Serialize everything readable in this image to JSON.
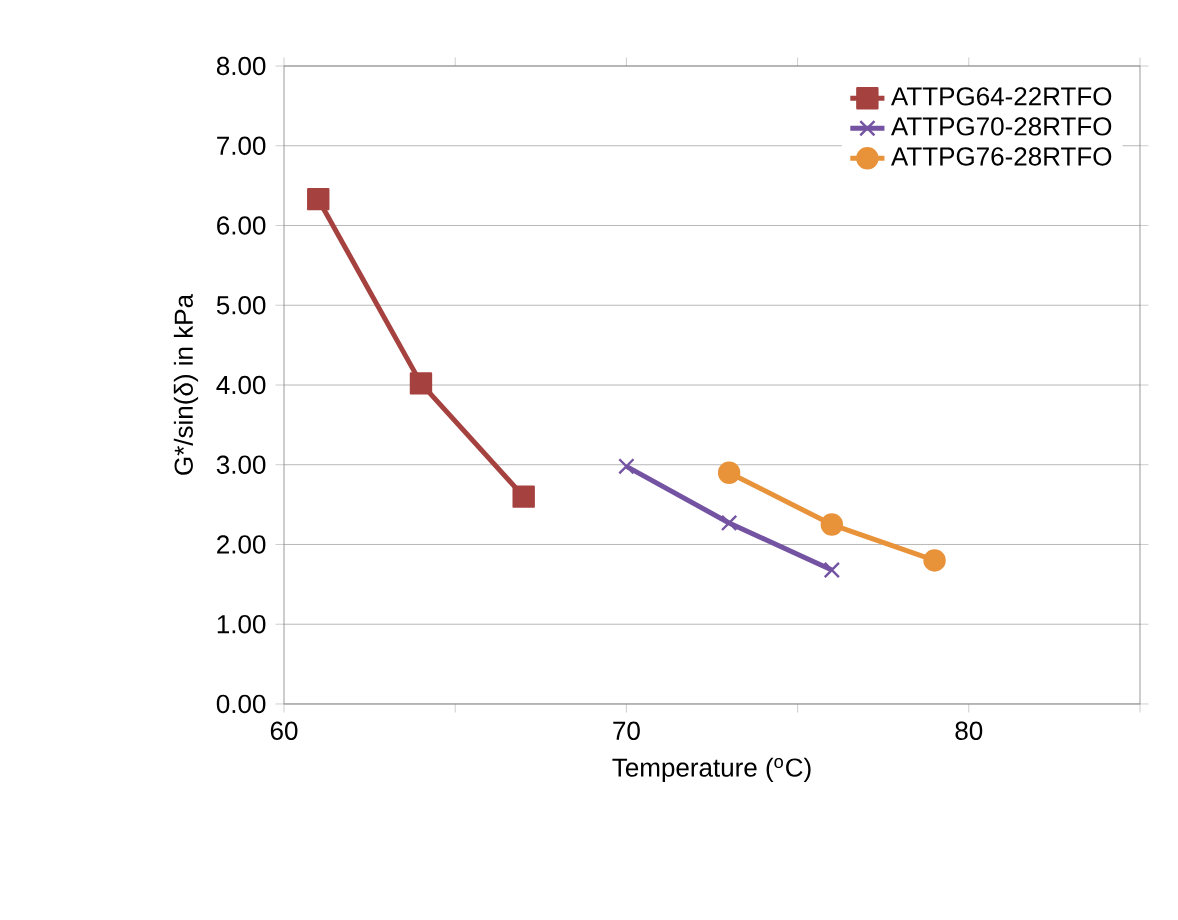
{
  "chart_data": {
    "type": "line",
    "xlabel": "Temperature  ($^{o}$C)",
    "ylabel": "G*/sin(δ) in kPa",
    "series": [
      {
        "name": "ATTPG64-22RTFO",
        "color": "#a5423f",
        "marker": "square",
        "x": [
          61,
          64,
          67
        ],
        "values": [
          6.33,
          4.02,
          2.6
        ]
      },
      {
        "name": "ATTPG70-28RTFO",
        "color": "#7453a2",
        "marker": "cross",
        "x": [
          70,
          73,
          76
        ],
        "values": [
          2.98,
          2.27,
          1.68
        ]
      },
      {
        "name": "ATTPG76-28RTFO",
        "color": "#e8923a",
        "marker": "circle",
        "x": [
          73,
          76,
          79
        ],
        "values": [
          2.9,
          2.25,
          1.8
        ]
      }
    ],
    "xlim": [
      60,
      85
    ],
    "xticks": [
      60,
      {
        "value": 65,
        "label": null
      },
      70,
      {
        "value": 75,
        "label": null
      },
      80,
      {
        "value": 85,
        "label": null
      }
    ],
    "ylim": [
      0,
      8
    ],
    "yticks": [
      {
        "value": 0,
        "label": "0.00"
      },
      {
        "value": 1,
        "label": "1.00"
      },
      {
        "value": 2,
        "label": "2.00"
      },
      {
        "value": 3,
        "label": "3.00"
      },
      {
        "value": 4,
        "label": "4.00"
      },
      {
        "value": 5,
        "label": "5.00"
      },
      {
        "value": 6,
        "label": "6.00"
      },
      {
        "value": 7,
        "label": "7.00"
      },
      {
        "value": 8,
        "label": "8.00"
      }
    ],
    "grid": "y",
    "legend": "top right"
  }
}
